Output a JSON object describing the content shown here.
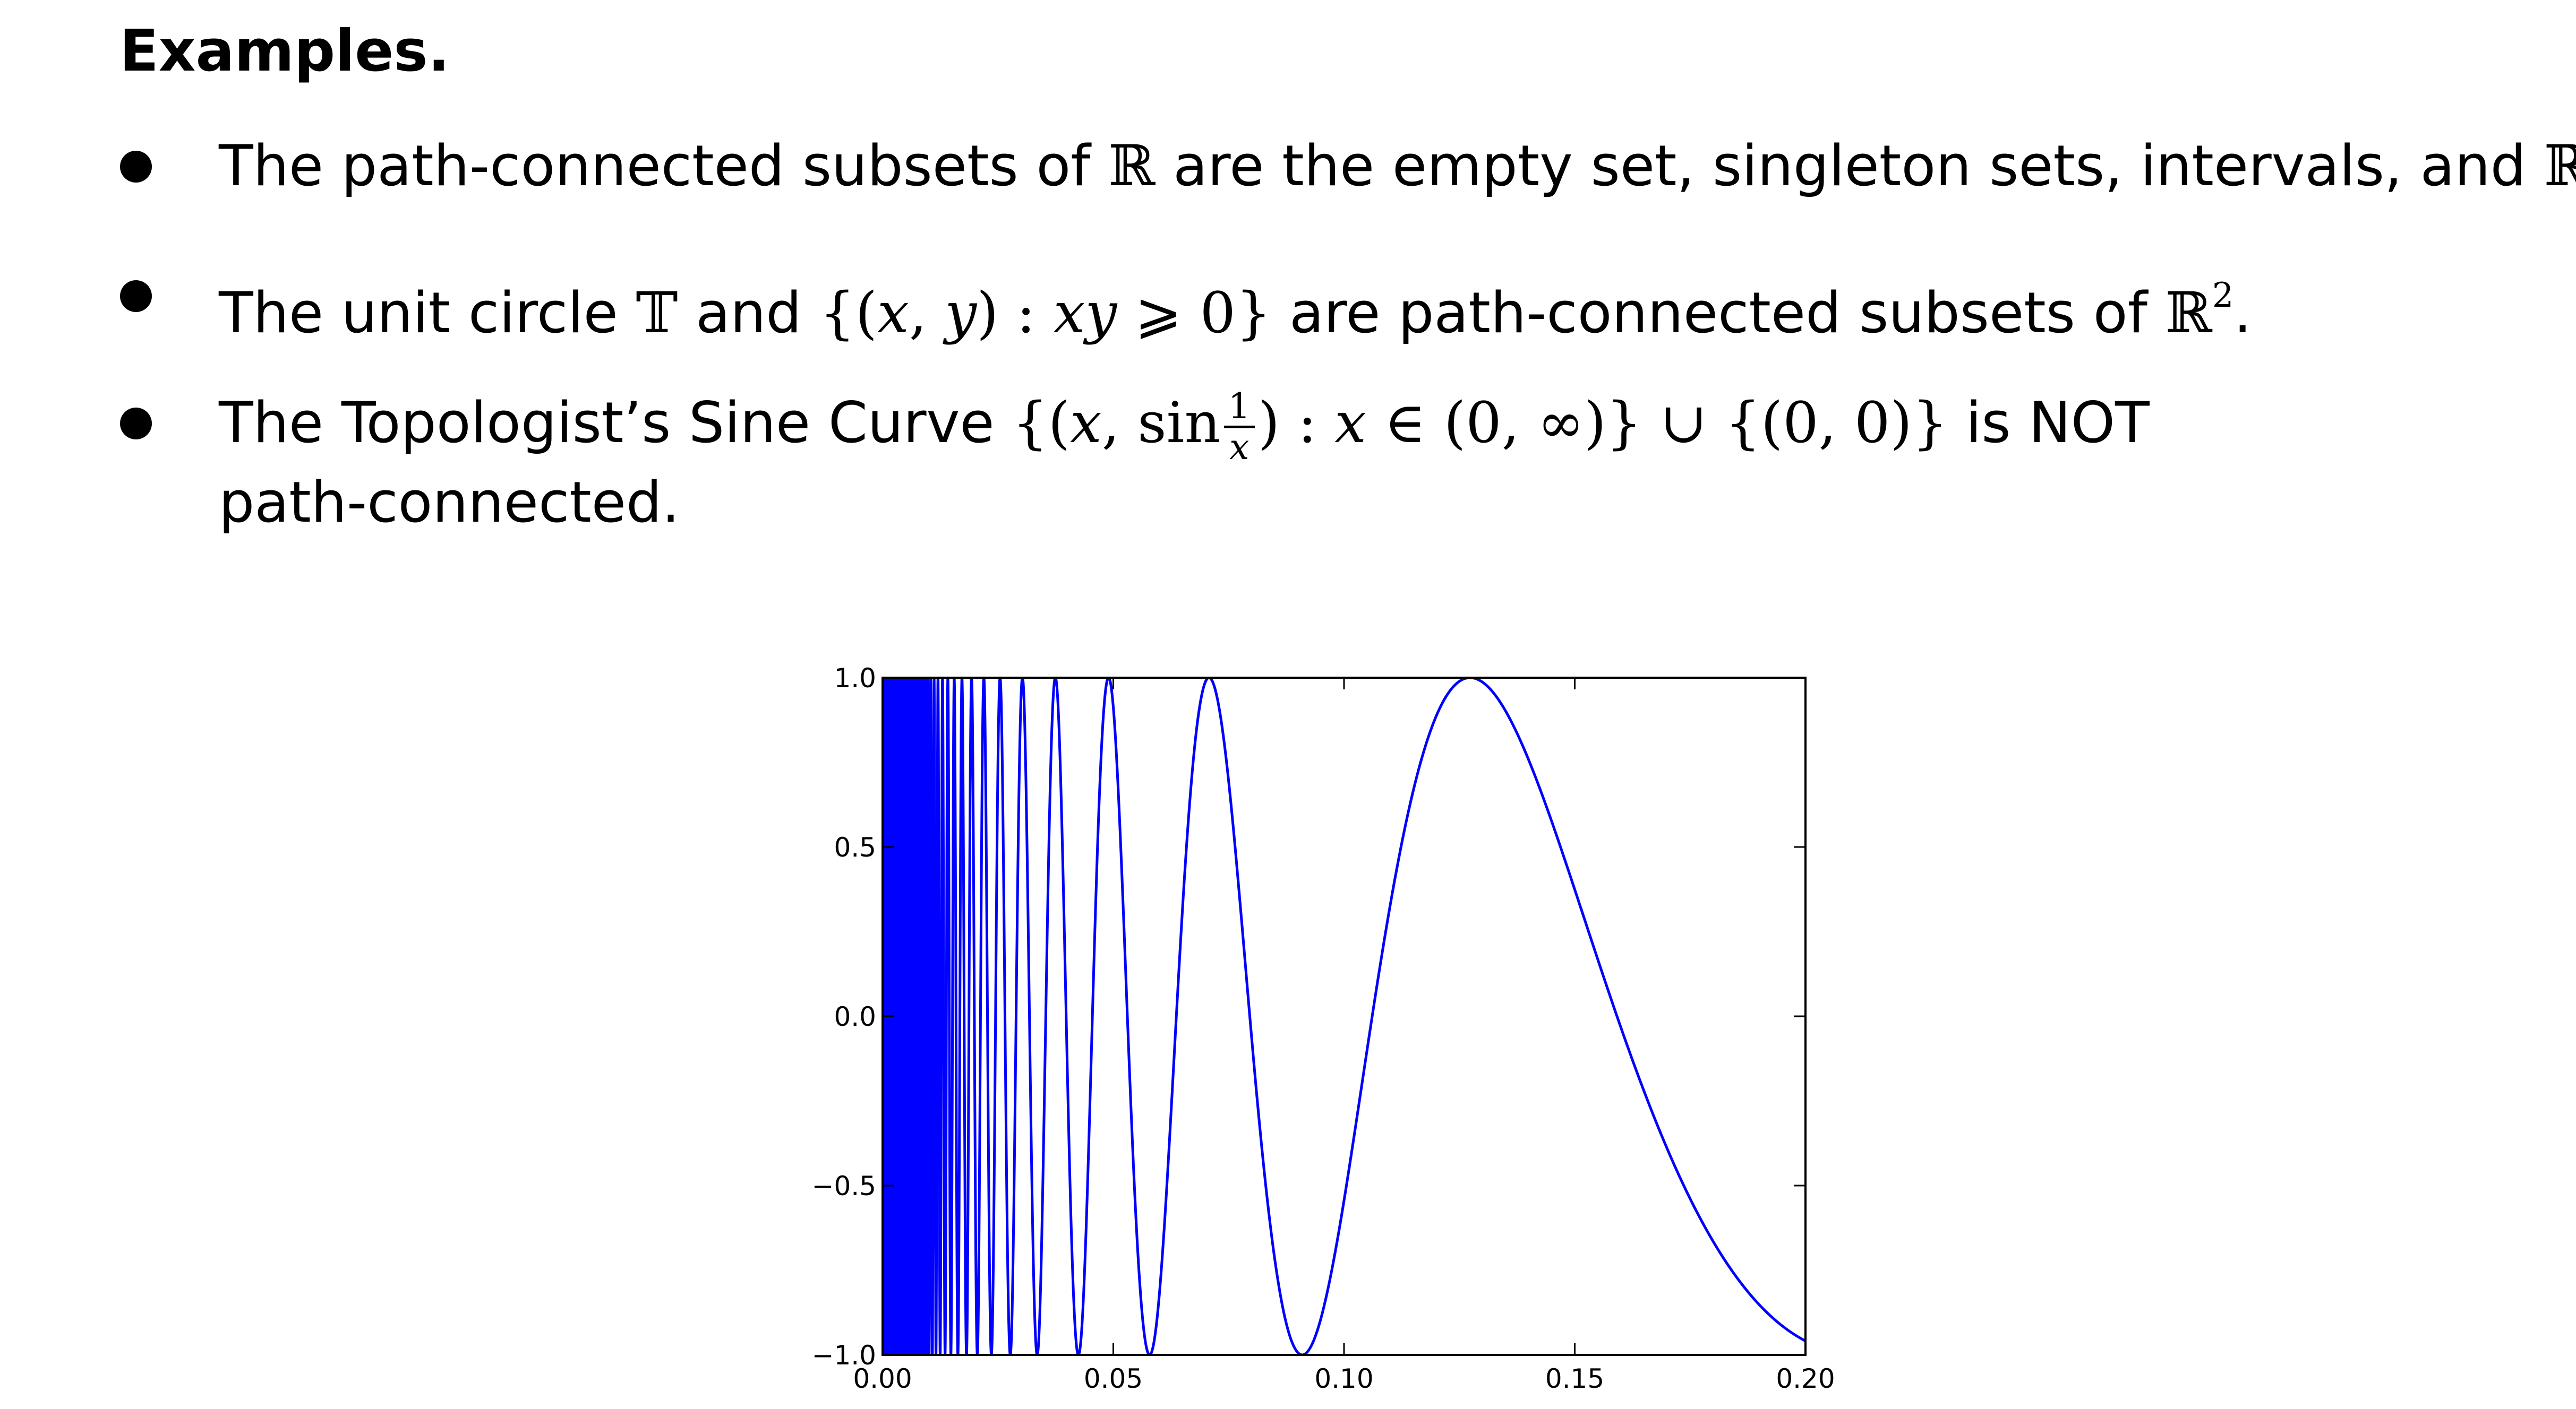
{
  "heading": "Examples.",
  "bullets": [
    {
      "parts": [
        "The path-connected subsets of ",
        "ℝ",
        " are the empty set, singleton sets, intervals, and ",
        "ℝ",
        "."
      ]
    },
    {
      "parts": [
        "The unit circle ",
        "𝕋",
        " and ",
        "{(",
        "x",
        ", ",
        "y",
        ")",
        " : ",
        "xy",
        " ⩾ 0}",
        " are path-connected subsets of ",
        "ℝ",
        "2",
        "."
      ]
    },
    {
      "parts": [
        "The Topologist’s Sine Curve ",
        "{(",
        "x",
        ", sin",
        "1",
        "x",
        ")",
        " : ",
        "x",
        " ∈ (0, ∞)}",
        " ∪ ",
        "{(0, 0)}",
        " is NOT"
      ],
      "continuation": "path-connected."
    }
  ],
  "colors": {
    "curve": "#0000ff",
    "axes": "#000000",
    "text": "#000000"
  },
  "chart_data": {
    "type": "line",
    "function": "y = sin(1/x)",
    "x_range": [
      0.0,
      0.2
    ],
    "xlim": [
      0.0,
      0.2
    ],
    "ylim": [
      -1.0,
      1.0
    ],
    "x_ticks": [
      "0.00",
      "0.05",
      "0.10",
      "0.15",
      "0.20"
    ],
    "y_ticks": [
      "1.0",
      "0.5",
      "0.0",
      "−0.5",
      "−1.0"
    ],
    "x_tick_values": [
      0.0,
      0.05,
      0.1,
      0.15,
      0.2
    ],
    "y_tick_values": [
      1.0,
      0.5,
      0.0,
      -0.5,
      -1.0
    ],
    "series": [
      {
        "color": "#0000ff",
        "extrema": [
          {
            "x": 0.1273,
            "y": 1.0
          },
          {
            "x": 0.0909,
            "y": -1.0
          },
          {
            "x": 0.0707,
            "y": 1.0
          },
          {
            "x": 0.0579,
            "y": -1.0
          },
          {
            "x": 0.049,
            "y": 1.0
          },
          {
            "x": 0.2,
            "y": -0.959
          }
        ]
      }
    ],
    "grid": false,
    "legend": "none",
    "title": "",
    "xlabel": "",
    "ylabel": ""
  }
}
